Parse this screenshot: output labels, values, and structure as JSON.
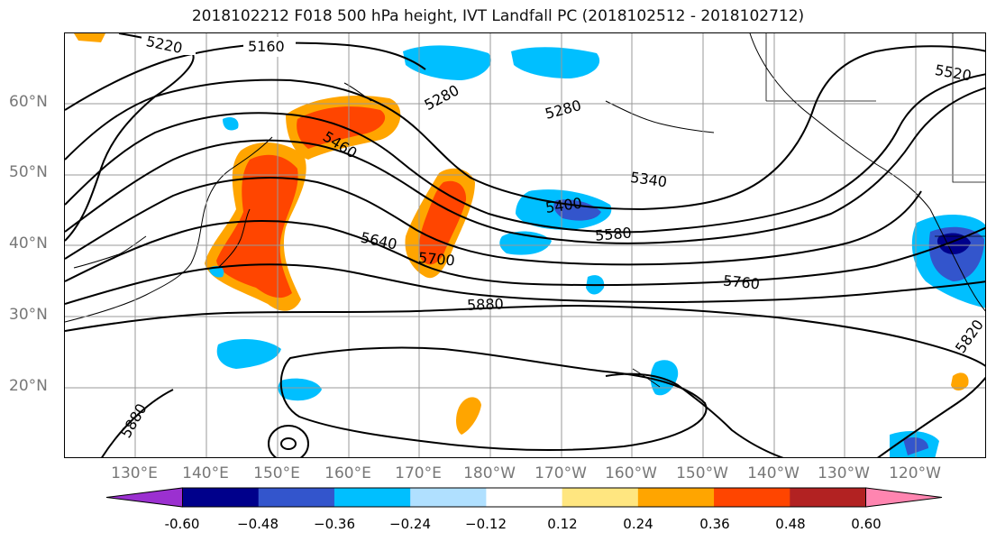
{
  "title": "2018102212 F018 500 hPa height, IVT Landfall PC (2018102512 - 2018102712)",
  "lat_labels": [
    "60°N",
    "50°N",
    "40°N",
    "30°N",
    "20°N"
  ],
  "lon_labels": [
    "130°E",
    "140°E",
    "150°E",
    "160°E",
    "170°E",
    "180°W",
    "170°W",
    "160°W",
    "150°W",
    "140°W",
    "130°W",
    "120°W"
  ],
  "contour_labels": [
    "5220",
    "5160",
    "5280",
    "5280",
    "5520",
    "5460",
    "5340",
    "5400",
    "5580",
    "5640",
    "5700",
    "5760",
    "5880",
    "5880",
    "5820"
  ],
  "colorbar": {
    "ticks": [
      "-0.60",
      "−0.48",
      "−0.36",
      "−0.24",
      "−0.12",
      "0.12",
      "0.24",
      "0.36",
      "0.48",
      "0.60"
    ],
    "colors": [
      "#9b30d0",
      "#00008b",
      "#3355cc",
      "#00bfff",
      "#b0e0ff",
      "#ffffff",
      "#ffe680",
      "#ffa500",
      "#ff4500",
      "#b22222",
      "#ff85b0"
    ]
  }
}
